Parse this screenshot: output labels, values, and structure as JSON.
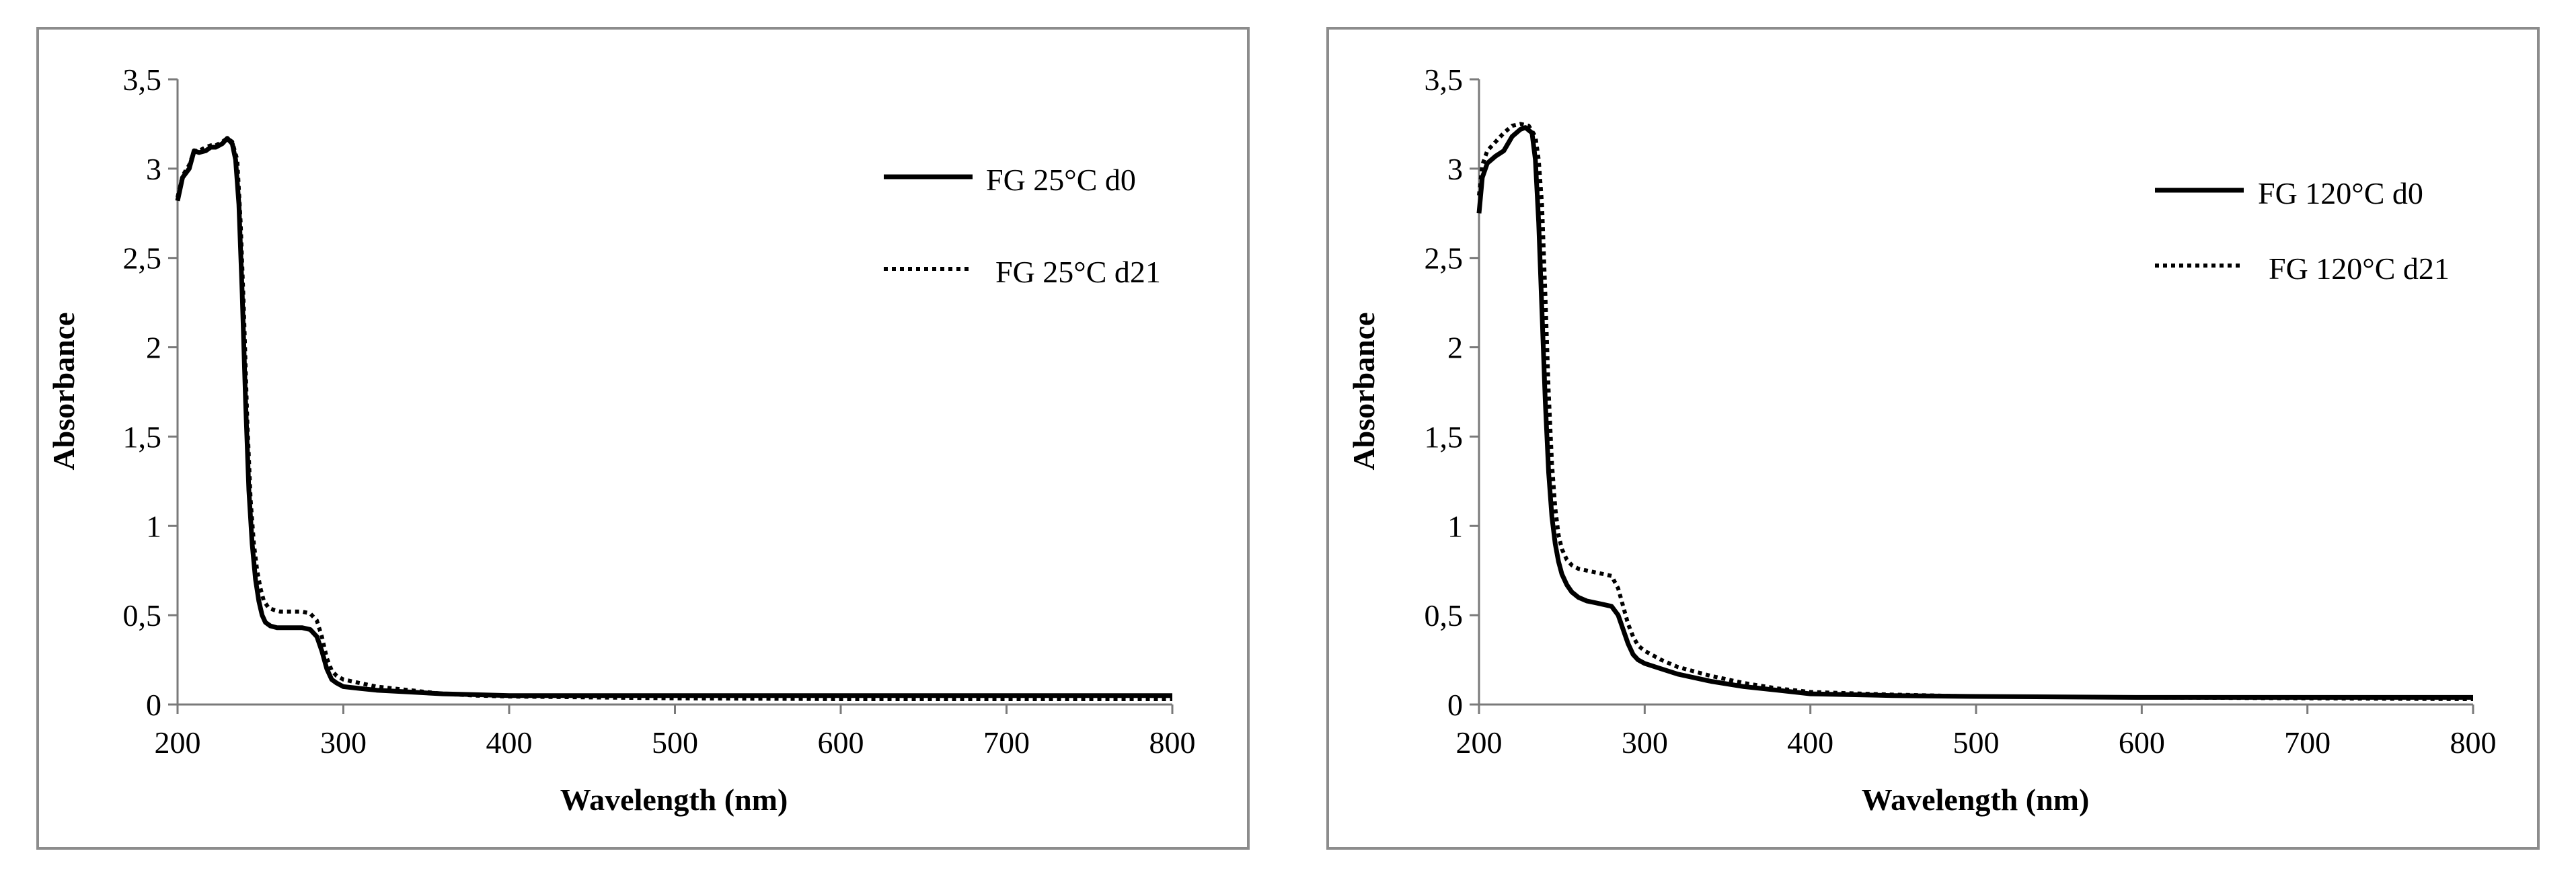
{
  "chart_data": [
    {
      "type": "line",
      "title": "",
      "xlabel": "Wavelength (nm)",
      "ylabel": "Absorbance",
      "xlim": [
        200,
        800
      ],
      "ylim": [
        0,
        3.5
      ],
      "xticks": [
        200,
        300,
        400,
        500,
        600,
        700,
        800
      ],
      "xtick_labels": [
        "200",
        "300",
        "400",
        "500",
        "600",
        "700",
        "800"
      ],
      "yticks": [
        0,
        0.5,
        1,
        1.5,
        2,
        2.5,
        3,
        3.5
      ],
      "ytick_labels": [
        "0",
        "0,5",
        "1",
        "1,5",
        "2",
        "2,5",
        "3",
        "3,5"
      ],
      "grid": false,
      "legend": "top-right",
      "series": [
        {
          "name": "FG 25°C d0",
          "style": "solid",
          "x": [
            200,
            203,
            207,
            210,
            213,
            217,
            220,
            223,
            227,
            230,
            233,
            235,
            237,
            239,
            241,
            243,
            245,
            247,
            249,
            251,
            253,
            256,
            260,
            265,
            270,
            275,
            280,
            284,
            287,
            290,
            293,
            296,
            300,
            310,
            320,
            340,
            360,
            380,
            400,
            450,
            500,
            600,
            700,
            800
          ],
          "y": [
            2.82,
            2.95,
            3.0,
            3.1,
            3.09,
            3.1,
            3.12,
            3.12,
            3.14,
            3.17,
            3.14,
            3.05,
            2.8,
            2.3,
            1.7,
            1.2,
            0.9,
            0.7,
            0.58,
            0.5,
            0.46,
            0.44,
            0.43,
            0.43,
            0.43,
            0.43,
            0.42,
            0.38,
            0.3,
            0.2,
            0.14,
            0.12,
            0.1,
            0.09,
            0.08,
            0.07,
            0.06,
            0.055,
            0.05,
            0.05,
            0.05,
            0.05,
            0.05,
            0.05
          ]
        },
        {
          "name": "FG 25°C d21",
          "style": "dotted",
          "x": [
            200,
            203,
            207,
            210,
            213,
            217,
            220,
            223,
            227,
            230,
            233,
            236,
            238,
            240,
            242,
            244,
            246,
            248,
            250,
            252,
            255,
            258,
            262,
            266,
            270,
            275,
            280,
            284,
            287,
            290,
            293,
            296,
            300,
            310,
            320,
            340,
            360,
            380,
            400,
            450,
            500,
            600,
            700,
            800
          ],
          "y": [
            2.84,
            2.96,
            3.02,
            3.1,
            3.1,
            3.12,
            3.13,
            3.13,
            3.15,
            3.17,
            3.15,
            3.05,
            2.7,
            2.2,
            1.6,
            1.15,
            0.9,
            0.75,
            0.65,
            0.58,
            0.54,
            0.53,
            0.52,
            0.52,
            0.52,
            0.52,
            0.51,
            0.47,
            0.38,
            0.26,
            0.19,
            0.16,
            0.14,
            0.12,
            0.1,
            0.08,
            0.06,
            0.05,
            0.045,
            0.04,
            0.035,
            0.03,
            0.03,
            0.03
          ]
        }
      ]
    },
    {
      "type": "line",
      "title": "",
      "xlabel": "Wavelength (nm)",
      "ylabel": "Absorbance",
      "xlim": [
        200,
        800
      ],
      "ylim": [
        0,
        3.5
      ],
      "xticks": [
        200,
        300,
        400,
        500,
        600,
        700,
        800
      ],
      "xtick_labels": [
        "200",
        "300",
        "400",
        "500",
        "600",
        "700",
        "800"
      ],
      "yticks": [
        0,
        0.5,
        1,
        1.5,
        2,
        2.5,
        3,
        3.5
      ],
      "ytick_labels": [
        "0",
        "0,5",
        "1",
        "1,5",
        "2",
        "2,5",
        "3",
        "3,5"
      ],
      "grid": false,
      "legend": "top-right",
      "series": [
        {
          "name": "FG 120°C d0",
          "style": "solid",
          "x": [
            200,
            202,
            205,
            210,
            215,
            220,
            225,
            228,
            232,
            234,
            236,
            238,
            240,
            242,
            244,
            246,
            248,
            250,
            253,
            256,
            260,
            265,
            270,
            275,
            280,
            284,
            287,
            290,
            293,
            296,
            300,
            310,
            320,
            340,
            360,
            380,
            400,
            450,
            500,
            600,
            700,
            800
          ],
          "y": [
            2.75,
            2.95,
            3.03,
            3.07,
            3.1,
            3.18,
            3.22,
            3.23,
            3.2,
            3.05,
            2.7,
            2.2,
            1.7,
            1.3,
            1.05,
            0.9,
            0.8,
            0.73,
            0.67,
            0.63,
            0.6,
            0.58,
            0.57,
            0.56,
            0.55,
            0.5,
            0.42,
            0.34,
            0.28,
            0.25,
            0.23,
            0.2,
            0.17,
            0.13,
            0.1,
            0.08,
            0.06,
            0.05,
            0.045,
            0.04,
            0.04,
            0.04
          ]
        },
        {
          "name": "FG 120°C d21",
          "style": "dotted",
          "x": [
            200,
            202,
            205,
            210,
            215,
            220,
            225,
            230,
            234,
            236,
            238,
            240,
            242,
            244,
            246,
            248,
            250,
            253,
            256,
            260,
            265,
            270,
            275,
            280,
            284,
            287,
            290,
            293,
            296,
            300,
            310,
            320,
            340,
            360,
            380,
            400,
            450,
            500,
            600,
            700,
            800
          ],
          "y": [
            2.85,
            3.02,
            3.1,
            3.15,
            3.2,
            3.24,
            3.25,
            3.24,
            3.18,
            3.05,
            2.8,
            2.3,
            1.75,
            1.35,
            1.1,
            0.95,
            0.87,
            0.81,
            0.78,
            0.76,
            0.75,
            0.74,
            0.73,
            0.72,
            0.65,
            0.55,
            0.45,
            0.38,
            0.33,
            0.3,
            0.25,
            0.21,
            0.16,
            0.12,
            0.09,
            0.07,
            0.055,
            0.045,
            0.04,
            0.035,
            0.03
          ]
        }
      ]
    }
  ]
}
